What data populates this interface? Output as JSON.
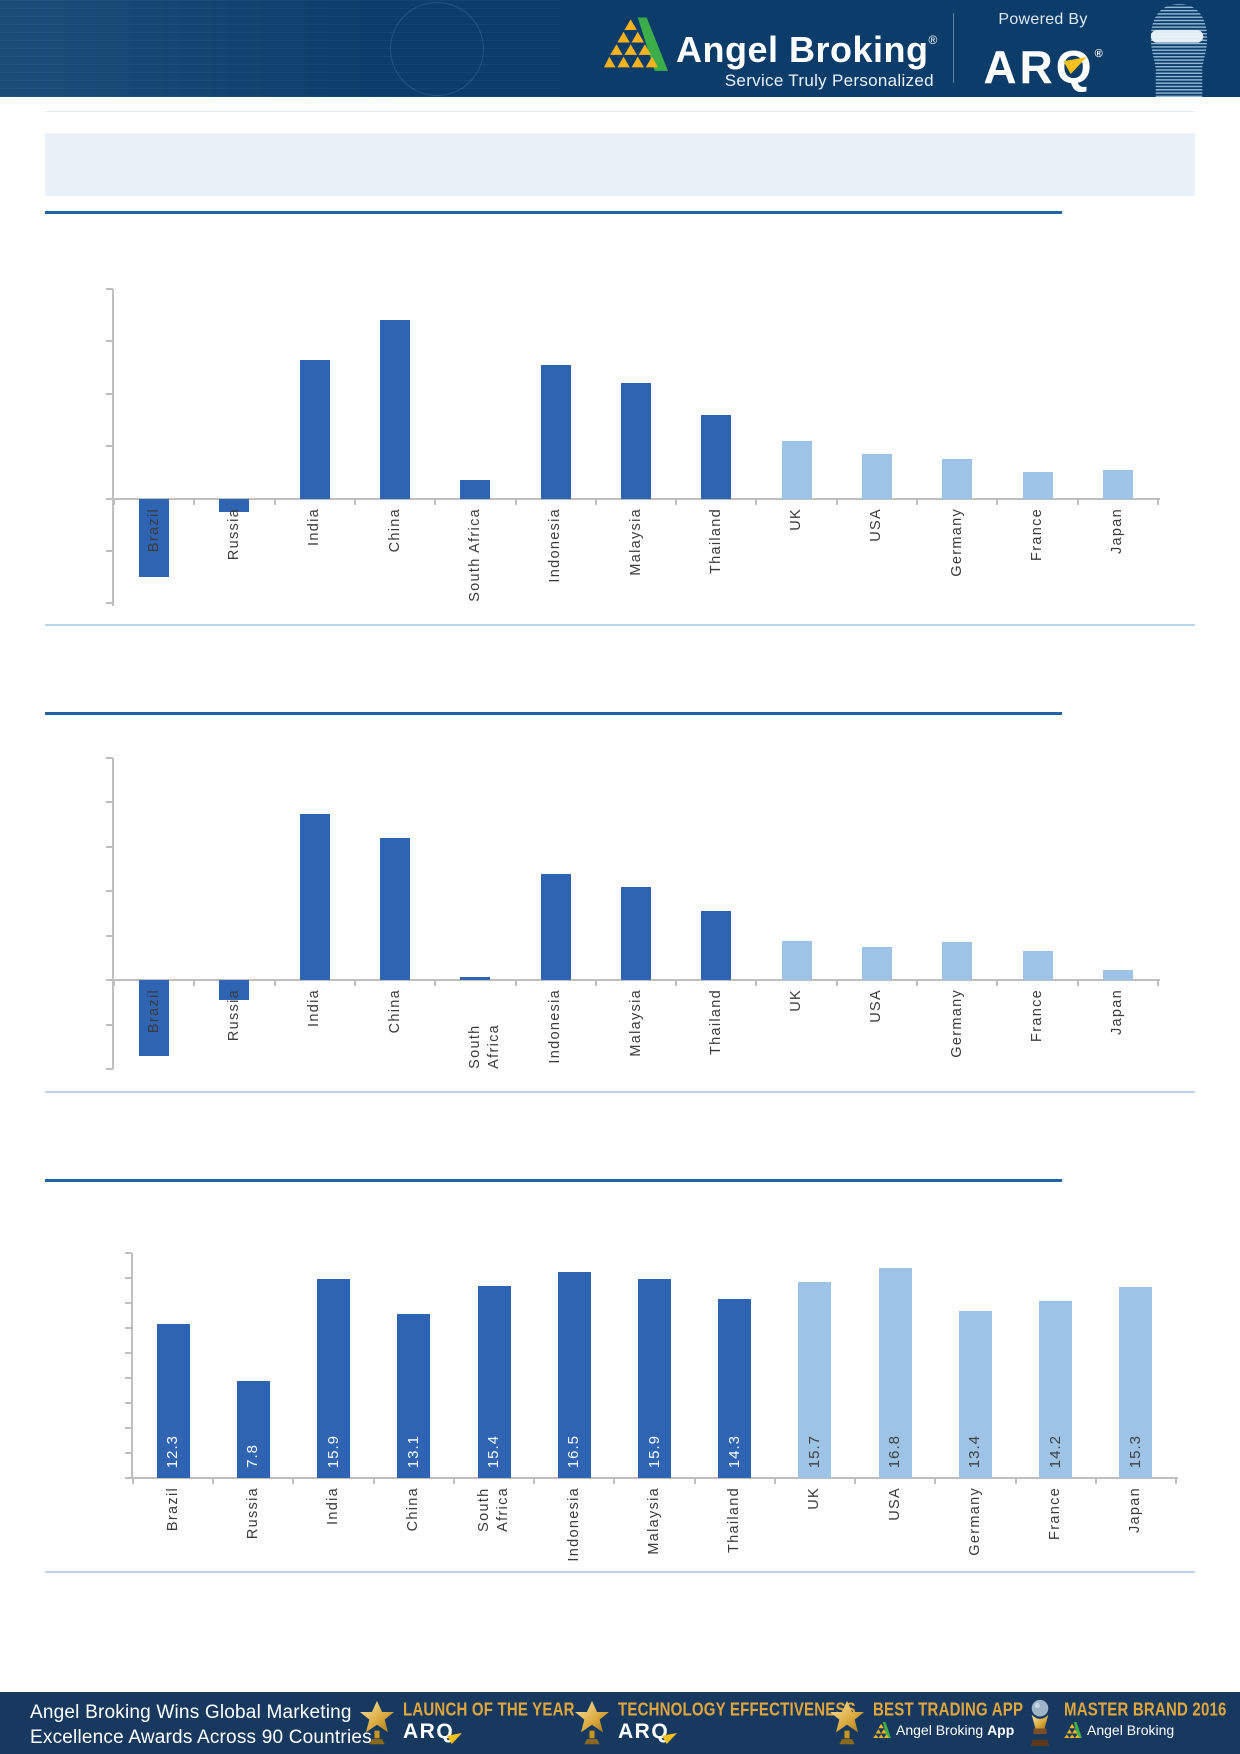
{
  "header": {
    "brand": "Angel Broking",
    "brand_reg": "®",
    "tagline": "Service Truly Personalized",
    "powered_by": "Powered By",
    "powered_brand": "ARQ",
    "powered_reg": "®"
  },
  "banner": {
    "title": ""
  },
  "colors": {
    "header_bg": "#0C3C69",
    "banner_bg": "#E9F1F9",
    "heading_rule": "#2563A8",
    "separator": "#BDD7EE",
    "axis": "#BFBFBF",
    "bar_dark": "#2E64B1",
    "bar_light": "#9DC3E6",
    "footer_bg": "#17395F",
    "gold": "#E0A63C",
    "logo_green": "#3CAE49",
    "logo_gold": "#F6B31D",
    "value_label_on_dark": "#FFFFFF",
    "value_label_on_light": "#404040"
  },
  "chart_data": [
    {
      "type": "bar",
      "title": "",
      "xlabel": "",
      "ylabel": "",
      "categories": [
        "Brazil",
        "Russia",
        "India",
        "China",
        "South Africa",
        "Indonesia",
        "Malaysia",
        "Thailand",
        "UK",
        "USA",
        "Germany",
        "France",
        "Japan"
      ],
      "values": [
        -3.0,
        -0.5,
        5.3,
        6.8,
        0.7,
        5.1,
        4.4,
        3.2,
        2.2,
        1.7,
        1.5,
        1.0,
        1.1
      ],
      "ylim": [
        -4.1,
        8
      ],
      "yticks": [
        8,
        6,
        4,
        2,
        0,
        -2,
        -4
      ],
      "grid": false,
      "legend": "none",
      "light_color_from_index": 8,
      "show_value_labels": false
    },
    {
      "type": "bar",
      "title": "",
      "xlabel": "",
      "ylabel": "",
      "categories": [
        "Brazil",
        "Russia",
        "India",
        "China",
        "South Africa",
        "Indonesia",
        "Malaysia",
        "Thailand",
        "UK",
        "USA",
        "Germany",
        "France",
        "Japan"
      ],
      "values": [
        -3.4,
        -0.9,
        7.5,
        6.4,
        0.15,
        4.8,
        4.2,
        3.1,
        1.75,
        1.5,
        1.7,
        1.3,
        0.45
      ],
      "ylim": [
        -4,
        10
      ],
      "yticks": [
        10,
        8,
        6,
        4,
        2,
        0,
        -2,
        -4
      ],
      "grid": false,
      "legend": "none",
      "light_color_from_index": 8,
      "show_value_labels": false
    },
    {
      "type": "bar",
      "title": "",
      "xlabel": "",
      "ylabel": "",
      "categories": [
        "Brazil",
        "Russia",
        "India",
        "China",
        "South\nAfrica",
        "Indonesia",
        "Malaysia",
        "Thailand",
        "UK",
        "USA",
        "Germany",
        "France",
        "Japan"
      ],
      "values": [
        12.3,
        7.8,
        15.9,
        13.1,
        15.4,
        16.5,
        15.9,
        14.3,
        15.7,
        16.8,
        13.4,
        14.2,
        15.3
      ],
      "value_labels": [
        "12.3",
        "7.8",
        "15.9",
        "13.1",
        "15.4",
        "16.5",
        "15.9",
        "14.3",
        "15.7",
        "16.8",
        "13.4",
        "14.2",
        "15.3"
      ],
      "ylim": [
        0,
        18
      ],
      "yticks": [
        18,
        16,
        14,
        12,
        10,
        8,
        6,
        4,
        2,
        0
      ],
      "grid": false,
      "legend": "none",
      "light_color_from_index": 8,
      "show_value_labels": true
    }
  ],
  "footer": {
    "headline1": "Angel Broking Wins Global Marketing",
    "headline2": "Excellence Awards Across 90 Countries",
    "awards": [
      {
        "title": "LAUNCH OF THE YEAR",
        "subtitle": "ARQ",
        "subtitle_reg": "™",
        "icon": "star-trophy-icon"
      },
      {
        "title": "TECHNOLOGY EFFECTIVENESS",
        "subtitle": "ARQ",
        "subtitle_reg": "™",
        "icon": "star-trophy-icon"
      },
      {
        "title": "BEST TRADING APP",
        "subtitle": "Angel Broking",
        "subtitle_bold": "App",
        "icon": "star-trophy-icon"
      },
      {
        "title": "MASTER BRAND 2016",
        "subtitle": "Angel Broking",
        "subtitle_bold": "",
        "icon": "globe-trophy-icon"
      }
    ]
  }
}
